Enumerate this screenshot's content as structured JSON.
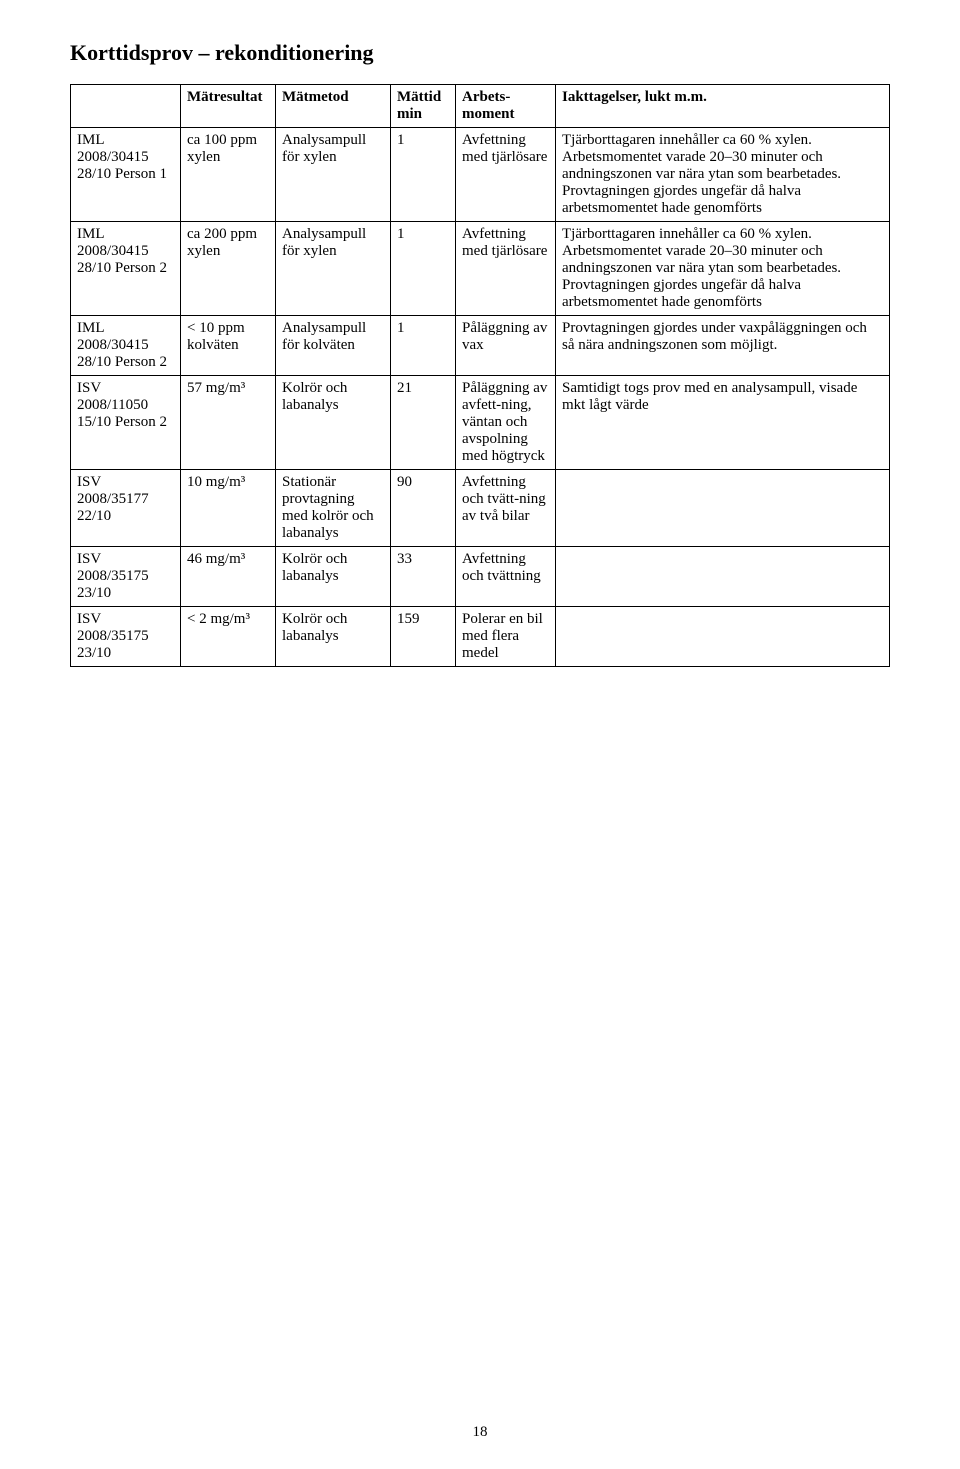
{
  "title": "Korttidsprov – rekonditionering",
  "page_number": "18",
  "headers": {
    "blank": "",
    "matresultat": "Mätresultat",
    "matmetod": "Mätmetod",
    "mattid": "Mättid min",
    "arbetsmoment": "Arbets-moment",
    "iakttagelser": "Iakttagelser, lukt m.m."
  },
  "rows": [
    {
      "id": "IML 2008/30415 28/10 Person 1",
      "res": "ca 100 ppm xylen",
      "met": "Analysampull för xylen",
      "tid": "1",
      "mom": "Avfettning med tjärlösare",
      "iak": "Tjärborttagaren innehåller ca 60 % xylen. Arbetsmomentet varade 20–30 minuter och andningszonen var nära ytan som bearbetades. Provtagningen gjordes ungefär då halva arbetsmomentet hade genomförts"
    },
    {
      "id": "IML 2008/30415 28/10 Person 2",
      "res": "ca 200 ppm xylen",
      "met": "Analysampull för xylen",
      "tid": "1",
      "mom": "Avfettning med tjärlösare",
      "iak": "Tjärborttagaren innehåller ca 60 % xylen. Arbetsmomentet varade 20–30 minuter och andningszonen var nära ytan som bearbetades. Provtagningen gjordes ungefär då halva arbetsmomentet hade genomförts"
    },
    {
      "id": "IML 2008/30415 28/10 Person 2",
      "res": "< 10 ppm kolväten",
      "met": "Analysampull för kolväten",
      "tid": "1",
      "mom": "Påläggning av vax",
      "iak": "Provtagningen gjordes under vaxpåläggningen och så nära andningszonen som möjligt."
    },
    {
      "id": "ISV 2008/11050 15/10 Person 2",
      "res": "57 mg/m³",
      "met": "Kolrör och labanalys",
      "tid": "21",
      "mom": "Påläggning av avfett-ning, väntan och avspolning med högtryck",
      "iak": "Samtidigt togs prov med en analysampull, visade mkt lågt värde"
    },
    {
      "id": "ISV 2008/35177 22/10",
      "res": "10 mg/m³",
      "met": "Stationär provtagning med kolrör och labanalys",
      "tid": "90",
      "mom": "Avfettning och tvätt-ning av två bilar",
      "iak": ""
    },
    {
      "id": "ISV 2008/35175 23/10",
      "res": "46 mg/m³",
      "met": "Kolrör och labanalys",
      "tid": "33",
      "mom": "Avfettning och tvättning",
      "iak": ""
    },
    {
      "id": "ISV 2008/35175 23/10",
      "res": "< 2 mg/m³",
      "met": "Kolrör och labanalys",
      "tid": "159",
      "mom": "Polerar en bil med flera medel",
      "iak": ""
    }
  ]
}
